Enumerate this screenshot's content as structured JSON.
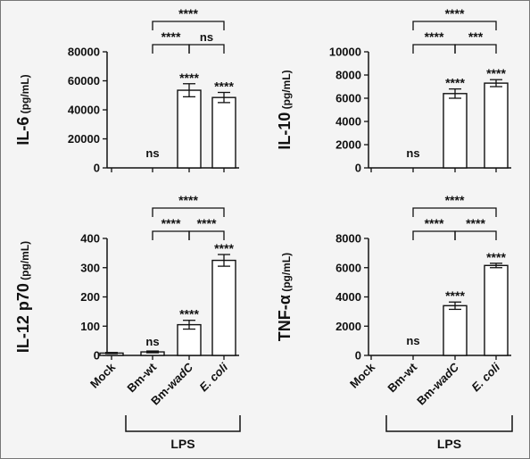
{
  "figure": {
    "background": "#f4f4f4",
    "border_color": "#777777",
    "bar_fill": "#ffffff",
    "ink": "#111111"
  },
  "categories": [
    "Mock",
    "Bm-wt",
    "Bm-wadC",
    "E. coli"
  ],
  "lps_label": "LPS",
  "chart_data": [
    {
      "type": "bar",
      "ylabel": "IL-6",
      "yunit": "(pg/mL)",
      "ylim": [
        0,
        80000
      ],
      "yticks": [
        "0",
        "20000",
        "40000",
        "60000",
        "80000"
      ],
      "categories": [
        "Mock",
        "Bm-wt",
        "Bm-wadC",
        "E. coli"
      ],
      "values": [
        0,
        0,
        53500,
        48500
      ],
      "errors": [
        0,
        0,
        4500,
        3500
      ],
      "bar_labels": [
        "",
        "ns",
        "****",
        "****"
      ],
      "brackets": [
        {
          "from": 1,
          "to": 2,
          "label": "****"
        },
        {
          "from": 2,
          "to": 3,
          "label": "ns"
        },
        {
          "from": 1,
          "to": 3,
          "label": "****"
        }
      ]
    },
    {
      "type": "bar",
      "ylabel": "IL-10",
      "yunit": "(pg/mL)",
      "ylim": [
        0,
        10000
      ],
      "yticks": [
        "0",
        "2000",
        "4000",
        "6000",
        "8000",
        "10000"
      ],
      "categories": [
        "Mock",
        "Bm-wt",
        "Bm-wadC",
        "E. coli"
      ],
      "values": [
        0,
        0,
        6400,
        7300
      ],
      "errors": [
        0,
        0,
        400,
        300
      ],
      "bar_labels": [
        "",
        "ns",
        "****",
        "****"
      ],
      "brackets": [
        {
          "from": 1,
          "to": 2,
          "label": "****"
        },
        {
          "from": 2,
          "to": 3,
          "label": "***"
        },
        {
          "from": 1,
          "to": 3,
          "label": "****"
        }
      ]
    },
    {
      "type": "bar",
      "ylabel": "IL-12 p70",
      "yunit": "(pg/mL)",
      "ylim": [
        0,
        400
      ],
      "yticks": [
        "0",
        "100",
        "200",
        "300",
        "400"
      ],
      "categories": [
        "Mock",
        "Bm-wt",
        "Bm-wadC",
        "E. coli"
      ],
      "values": [
        8,
        12,
        105,
        325
      ],
      "errors": [
        2,
        3,
        15,
        20
      ],
      "bar_labels": [
        "",
        "ns",
        "****",
        "****"
      ],
      "brackets": [
        {
          "from": 1,
          "to": 2,
          "label": "****"
        },
        {
          "from": 2,
          "to": 3,
          "label": "****"
        },
        {
          "from": 1,
          "to": 3,
          "label": "****"
        }
      ]
    },
    {
      "type": "bar",
      "ylabel": "TNF-α",
      "yunit": "(pg/mL)",
      "ylim": [
        0,
        8000
      ],
      "yticks": [
        "0",
        "2000",
        "4000",
        "6000",
        "8000"
      ],
      "categories": [
        "Mock",
        "Bm-wt",
        "Bm-wadC",
        "E. coli"
      ],
      "values": [
        0,
        0,
        3400,
        6150
      ],
      "errors": [
        0,
        0,
        250,
        150
      ],
      "bar_labels": [
        "",
        "ns",
        "****",
        "****"
      ],
      "brackets": [
        {
          "from": 1,
          "to": 2,
          "label": "****"
        },
        {
          "from": 2,
          "to": 3,
          "label": "****"
        },
        {
          "from": 1,
          "to": 3,
          "label": "****"
        }
      ]
    }
  ]
}
